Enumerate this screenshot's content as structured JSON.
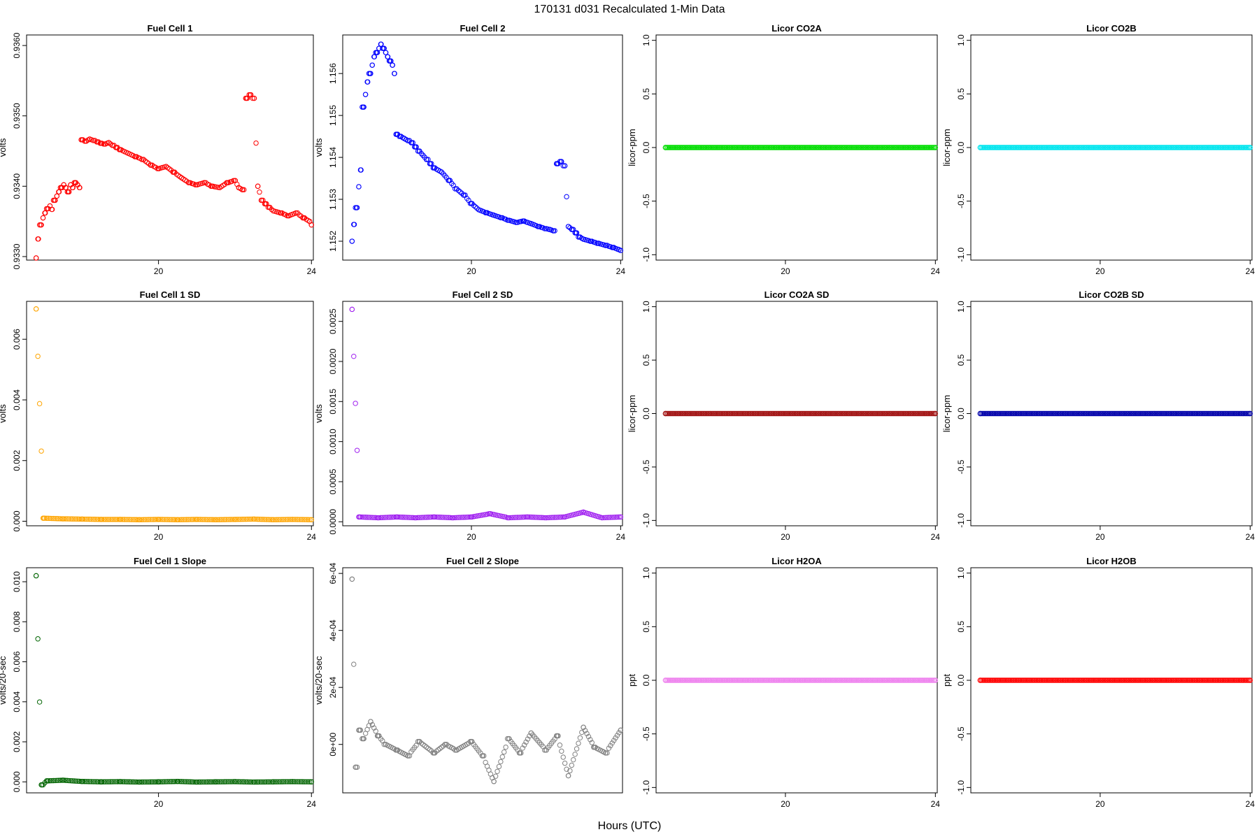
{
  "figure": {
    "title": "170131    d031    Recalculated 1-Min Data",
    "xlabel": "Hours (UTC)"
  },
  "chart_data": [
    {
      "type": "scatter",
      "title": "Fuel Cell 1",
      "ylabel": "volts",
      "color": "#ff0000",
      "xlim": [
        16.55,
        24.05
      ],
      "ylim": [
        0.93295,
        0.93615
      ],
      "xticks": [
        20,
        24
      ],
      "yticks": [
        0.933,
        0.934,
        0.935,
        0.936
      ],
      "ytick_labels": [
        "0.9330",
        "0.9340",
        "0.9350",
        "0.9360"
      ],
      "x": [
        16.8,
        16.86,
        16.92,
        16.98,
        17.04,
        17.1,
        17.16,
        17.22,
        17.28,
        17.34,
        17.4,
        17.46,
        17.52,
        17.58,
        17.64,
        17.7,
        17.76,
        17.82,
        17.88,
        17.94,
        18.0,
        18.1,
        18.2,
        18.3,
        18.4,
        18.5,
        18.6,
        18.7,
        18.8,
        18.9,
        19.0,
        19.2,
        19.4,
        19.6,
        19.8,
        20.0,
        20.2,
        20.4,
        20.6,
        20.8,
        21.0,
        21.2,
        21.4,
        21.6,
        21.8,
        22.0,
        22.1,
        22.2,
        22.3,
        22.4,
        22.5,
        22.6,
        22.7,
        22.8,
        22.9,
        23.0,
        23.2,
        23.4,
        23.6,
        23.8,
        23.95,
        24.0
      ],
      "y": [
        0.93298,
        0.93325,
        0.93345,
        0.93355,
        0.93362,
        0.93368,
        0.93372,
        0.93367,
        0.9338,
        0.93386,
        0.93392,
        0.93398,
        0.93402,
        0.93398,
        0.93392,
        0.93402,
        0.93398,
        0.93405,
        0.93402,
        0.93398,
        0.93466,
        0.93464,
        0.93467,
        0.93465,
        0.93463,
        0.93461,
        0.9346,
        0.93462,
        0.93458,
        0.93455,
        0.93452,
        0.93447,
        0.93442,
        0.93438,
        0.9343,
        0.93425,
        0.93428,
        0.9342,
        0.93412,
        0.93405,
        0.93402,
        0.93405,
        0.934,
        0.93398,
        0.93405,
        0.93408,
        0.93398,
        0.93395,
        0.93525,
        0.9353,
        0.93525,
        0.934,
        0.9338,
        0.93375,
        0.9337,
        0.93365,
        0.93362,
        0.93358,
        0.93362,
        0.93355,
        0.9335,
        0.93345
      ]
    },
    {
      "type": "scatter",
      "title": "Fuel Cell 2",
      "ylabel": "volts",
      "color": "#0000ff",
      "xlim": [
        16.55,
        24.05
      ],
      "ylim": [
        1.15155,
        1.15692
      ],
      "xticks": [
        20,
        24
      ],
      "yticks": [
        1.152,
        1.153,
        1.154,
        1.155,
        1.156
      ],
      "ytick_labels": [
        "1.152",
        "1.153",
        "1.154",
        "1.155",
        "1.156"
      ],
      "x": [
        16.8,
        16.86,
        16.92,
        16.98,
        17.04,
        17.1,
        17.16,
        17.22,
        17.28,
        17.34,
        17.4,
        17.46,
        17.52,
        17.58,
        17.64,
        17.7,
        17.76,
        17.82,
        17.88,
        17.94,
        18.0,
        18.1,
        18.2,
        18.3,
        18.4,
        18.5,
        18.6,
        18.7,
        18.8,
        18.9,
        19.0,
        19.2,
        19.4,
        19.6,
        19.8,
        20.0,
        20.2,
        20.4,
        20.6,
        20.8,
        21.0,
        21.2,
        21.4,
        21.6,
        21.8,
        22.0,
        22.1,
        22.2,
        22.3,
        22.4,
        22.5,
        22.6,
        22.7,
        22.8,
        22.9,
        23.0,
        23.2,
        23.4,
        23.6,
        23.8,
        23.95,
        24.0
      ],
      "y": [
        1.152,
        1.1524,
        1.1528,
        1.1533,
        1.1537,
        1.1552,
        1.1555,
        1.1558,
        1.156,
        1.1562,
        1.1564,
        1.1565,
        1.1566,
        1.1567,
        1.1566,
        1.1565,
        1.1564,
        1.1563,
        1.1562,
        1.156,
        1.15455,
        1.1545,
        1.15445,
        1.1544,
        1.15435,
        1.15425,
        1.15415,
        1.15405,
        1.15395,
        1.15385,
        1.15375,
        1.15365,
        1.15345,
        1.15325,
        1.1531,
        1.1529,
        1.15275,
        1.15268,
        1.15262,
        1.15256,
        1.1525,
        1.15245,
        1.15248,
        1.15242,
        1.15235,
        1.1523,
        1.15228,
        1.15225,
        1.15385,
        1.1539,
        1.1538,
        1.15235,
        1.15228,
        1.1522,
        1.1521,
        1.15205,
        1.152,
        1.15195,
        1.1519,
        1.15185,
        1.1518,
        1.15178
      ]
    },
    {
      "type": "scatter",
      "title": "Licor CO2A",
      "ylabel": "licor-ppm",
      "color": "#00dd00",
      "xlim": [
        16.55,
        24.05
      ],
      "ylim": [
        -1.05,
        1.05
      ],
      "xticks": [
        20,
        24
      ],
      "yticks": [
        -1,
        -0.5,
        0,
        0.5,
        1
      ],
      "ytick_labels": [
        "-1.0",
        "-0.5",
        "0.0",
        "0.5",
        "1.0"
      ],
      "x": [
        16.8,
        24.0
      ],
      "y": [
        0,
        0
      ],
      "constant": true
    },
    {
      "type": "scatter",
      "title": "Licor CO2B",
      "ylabel": "licor-ppm",
      "color": "#00e5ee",
      "xlim": [
        16.55,
        24.05
      ],
      "ylim": [
        -1.05,
        1.05
      ],
      "xticks": [
        20,
        24
      ],
      "yticks": [
        -1,
        -0.5,
        0,
        0.5,
        1
      ],
      "ytick_labels": [
        "-1.0",
        "-0.5",
        "0.0",
        "0.5",
        "1.0"
      ],
      "x": [
        16.8,
        24.0
      ],
      "y": [
        0,
        0
      ],
      "constant": true
    },
    {
      "type": "scatter",
      "title": "Fuel Cell 1 SD",
      "ylabel": "volts",
      "color": "#ffa500",
      "xlim": [
        16.55,
        24.05
      ],
      "ylim": [
        -0.00015,
        0.00725
      ],
      "xticks": [
        20,
        24
      ],
      "yticks": [
        0,
        0.002,
        0.004,
        0.006
      ],
      "ytick_labels": [
        "0.000",
        "0.002",
        "0.004",
        "0.006"
      ],
      "x": [
        16.8,
        17.0,
        17.5,
        18.0,
        18.5,
        19.0,
        19.5,
        20.0,
        20.5,
        21.0,
        21.5,
        22.0,
        22.5,
        23.0,
        23.5,
        24.0
      ],
      "y": [
        0.007,
        0.0001,
        8e-05,
        7e-05,
        6e-05,
        6e-05,
        5e-05,
        6e-05,
        5e-05,
        6e-05,
        5e-05,
        6e-05,
        7e-05,
        5e-05,
        6e-05,
        5e-05
      ]
    },
    {
      "type": "scatter",
      "title": "Fuel Cell 2 SD",
      "ylabel": "volts",
      "color": "#a020f0",
      "xlim": [
        16.55,
        24.05
      ],
      "ylim": [
        -5e-05,
        0.00275
      ],
      "xticks": [
        20,
        24
      ],
      "yticks": [
        0,
        0.0005,
        0.001,
        0.0015,
        0.002,
        0.0025
      ],
      "ytick_labels": [
        "0.0000",
        "0.0005",
        "0.0010",
        "0.0015",
        "0.0020",
        "0.0025"
      ],
      "x": [
        16.8,
        17.0,
        17.5,
        18.0,
        18.5,
        19.0,
        19.5,
        20.0,
        20.5,
        21.0,
        21.5,
        22.0,
        22.5,
        23.0,
        23.5,
        24.0
      ],
      "y": [
        0.00265,
        6e-05,
        5e-05,
        6e-05,
        5e-05,
        6e-05,
        5e-05,
        6e-05,
        0.0001,
        5e-05,
        6e-05,
        5e-05,
        6e-05,
        0.00012,
        5e-05,
        6e-05
      ]
    },
    {
      "type": "scatter",
      "title": "Licor CO2A SD",
      "ylabel": "licor-ppm",
      "color": "#a01010",
      "xlim": [
        16.55,
        24.05
      ],
      "ylim": [
        -1.05,
        1.05
      ],
      "xticks": [
        20,
        24
      ],
      "yticks": [
        -1,
        -0.5,
        0,
        0.5,
        1
      ],
      "ytick_labels": [
        "-1.0",
        "-0.5",
        "0.0",
        "0.5",
        "1.0"
      ],
      "x": [
        16.8,
        24.0
      ],
      "y": [
        0,
        0
      ],
      "constant": true
    },
    {
      "type": "scatter",
      "title": "Licor CO2B SD",
      "ylabel": "licor-ppm",
      "color": "#0000aa",
      "xlim": [
        16.55,
        24.05
      ],
      "ylim": [
        -1.05,
        1.05
      ],
      "xticks": [
        20,
        24
      ],
      "yticks": [
        -1,
        -0.5,
        0,
        0.5,
        1
      ],
      "ytick_labels": [
        "-1.0",
        "-0.5",
        "0.0",
        "0.5",
        "1.0"
      ],
      "x": [
        16.8,
        24.0
      ],
      "y": [
        0,
        0
      ],
      "constant": true
    },
    {
      "type": "scatter",
      "title": "Fuel Cell 1 Slope",
      "ylabel": "volts/20-sec",
      "color": "#006400",
      "xlim": [
        16.55,
        24.05
      ],
      "ylim": [
        -0.00055,
        0.0107
      ],
      "xticks": [
        20,
        24
      ],
      "yticks": [
        0,
        0.002,
        0.004,
        0.006,
        0.008,
        0.01
      ],
      "ytick_labels": [
        "0.000",
        "0.002",
        "0.004",
        "0.006",
        "0.008",
        "0.010"
      ],
      "x": [
        16.8,
        16.95,
        17.1,
        17.5,
        18.0,
        18.5,
        19.0,
        19.5,
        20.0,
        20.5,
        21.0,
        21.5,
        22.0,
        22.5,
        23.0,
        23.5,
        24.0
      ],
      "y": [
        0.0103,
        -0.00015,
        5e-05,
        8e-05,
        2e-05,
        0.0,
        1e-05,
        -1e-05,
        0.0,
        2e-05,
        -1e-05,
        0.0,
        1e-05,
        -1e-05,
        0.0,
        1e-05,
        0.0
      ]
    },
    {
      "type": "scatter",
      "title": "Fuel Cell 2 Slope",
      "ylabel": "volts/20-sec",
      "color": "#808080",
      "xlim": [
        16.55,
        24.05
      ],
      "ylim": [
        -0.00017,
        0.00062
      ],
      "xticks": [],
      "yticks": [
        0,
        0.0002,
        0.0004,
        0.0006
      ],
      "ytick_labels": [
        "0e+00",
        "2e-04",
        "4e-04",
        "6e-04"
      ],
      "x": [
        16.8,
        16.9,
        17.0,
        17.1,
        17.3,
        17.5,
        17.7,
        18.0,
        18.3,
        18.6,
        19.0,
        19.3,
        19.6,
        20.0,
        20.3,
        20.6,
        21.0,
        21.3,
        21.6,
        22.0,
        22.3,
        22.6,
        23.0,
        23.3,
        23.6,
        24.0
      ],
      "y": [
        0.00058,
        -8e-05,
        5e-05,
        2e-05,
        8e-05,
        3e-05,
        0.0,
        -2e-05,
        -4e-05,
        1e-05,
        -3e-05,
        0.0,
        -2e-05,
        1e-05,
        -4e-05,
        -0.00013,
        2e-05,
        -3e-05,
        4e-05,
        -2e-05,
        3e-05,
        -0.00011,
        6e-05,
        -1e-05,
        -3e-05,
        5e-05
      ]
    },
    {
      "type": "scatter",
      "title": "Licor H2OA",
      "ylabel": "ppt",
      "color": "#ee82ee",
      "xlim": [
        16.55,
        24.05
      ],
      "ylim": [
        -1.05,
        1.05
      ],
      "xticks": [
        20,
        24
      ],
      "yticks": [
        -1,
        -0.5,
        0,
        0.5,
        1
      ],
      "ytick_labels": [
        "-1.0",
        "-0.5",
        "0.0",
        "0.5",
        "1.0"
      ],
      "x": [
        16.8,
        24.0
      ],
      "y": [
        0,
        0
      ],
      "constant": true
    },
    {
      "type": "scatter",
      "title": "Licor H2OB",
      "ylabel": "ppt",
      "color": "#ff0000",
      "xlim": [
        16.55,
        24.05
      ],
      "ylim": [
        -1.05,
        1.05
      ],
      "xticks": [
        20,
        24
      ],
      "yticks": [
        -1,
        -0.5,
        0,
        0.5,
        1
      ],
      "ytick_labels": [
        "-1.0",
        "-0.5",
        "0.0",
        "0.5",
        "1.0"
      ],
      "x": [
        16.8,
        24.0
      ],
      "y": [
        0,
        0
      ],
      "constant": true
    }
  ]
}
